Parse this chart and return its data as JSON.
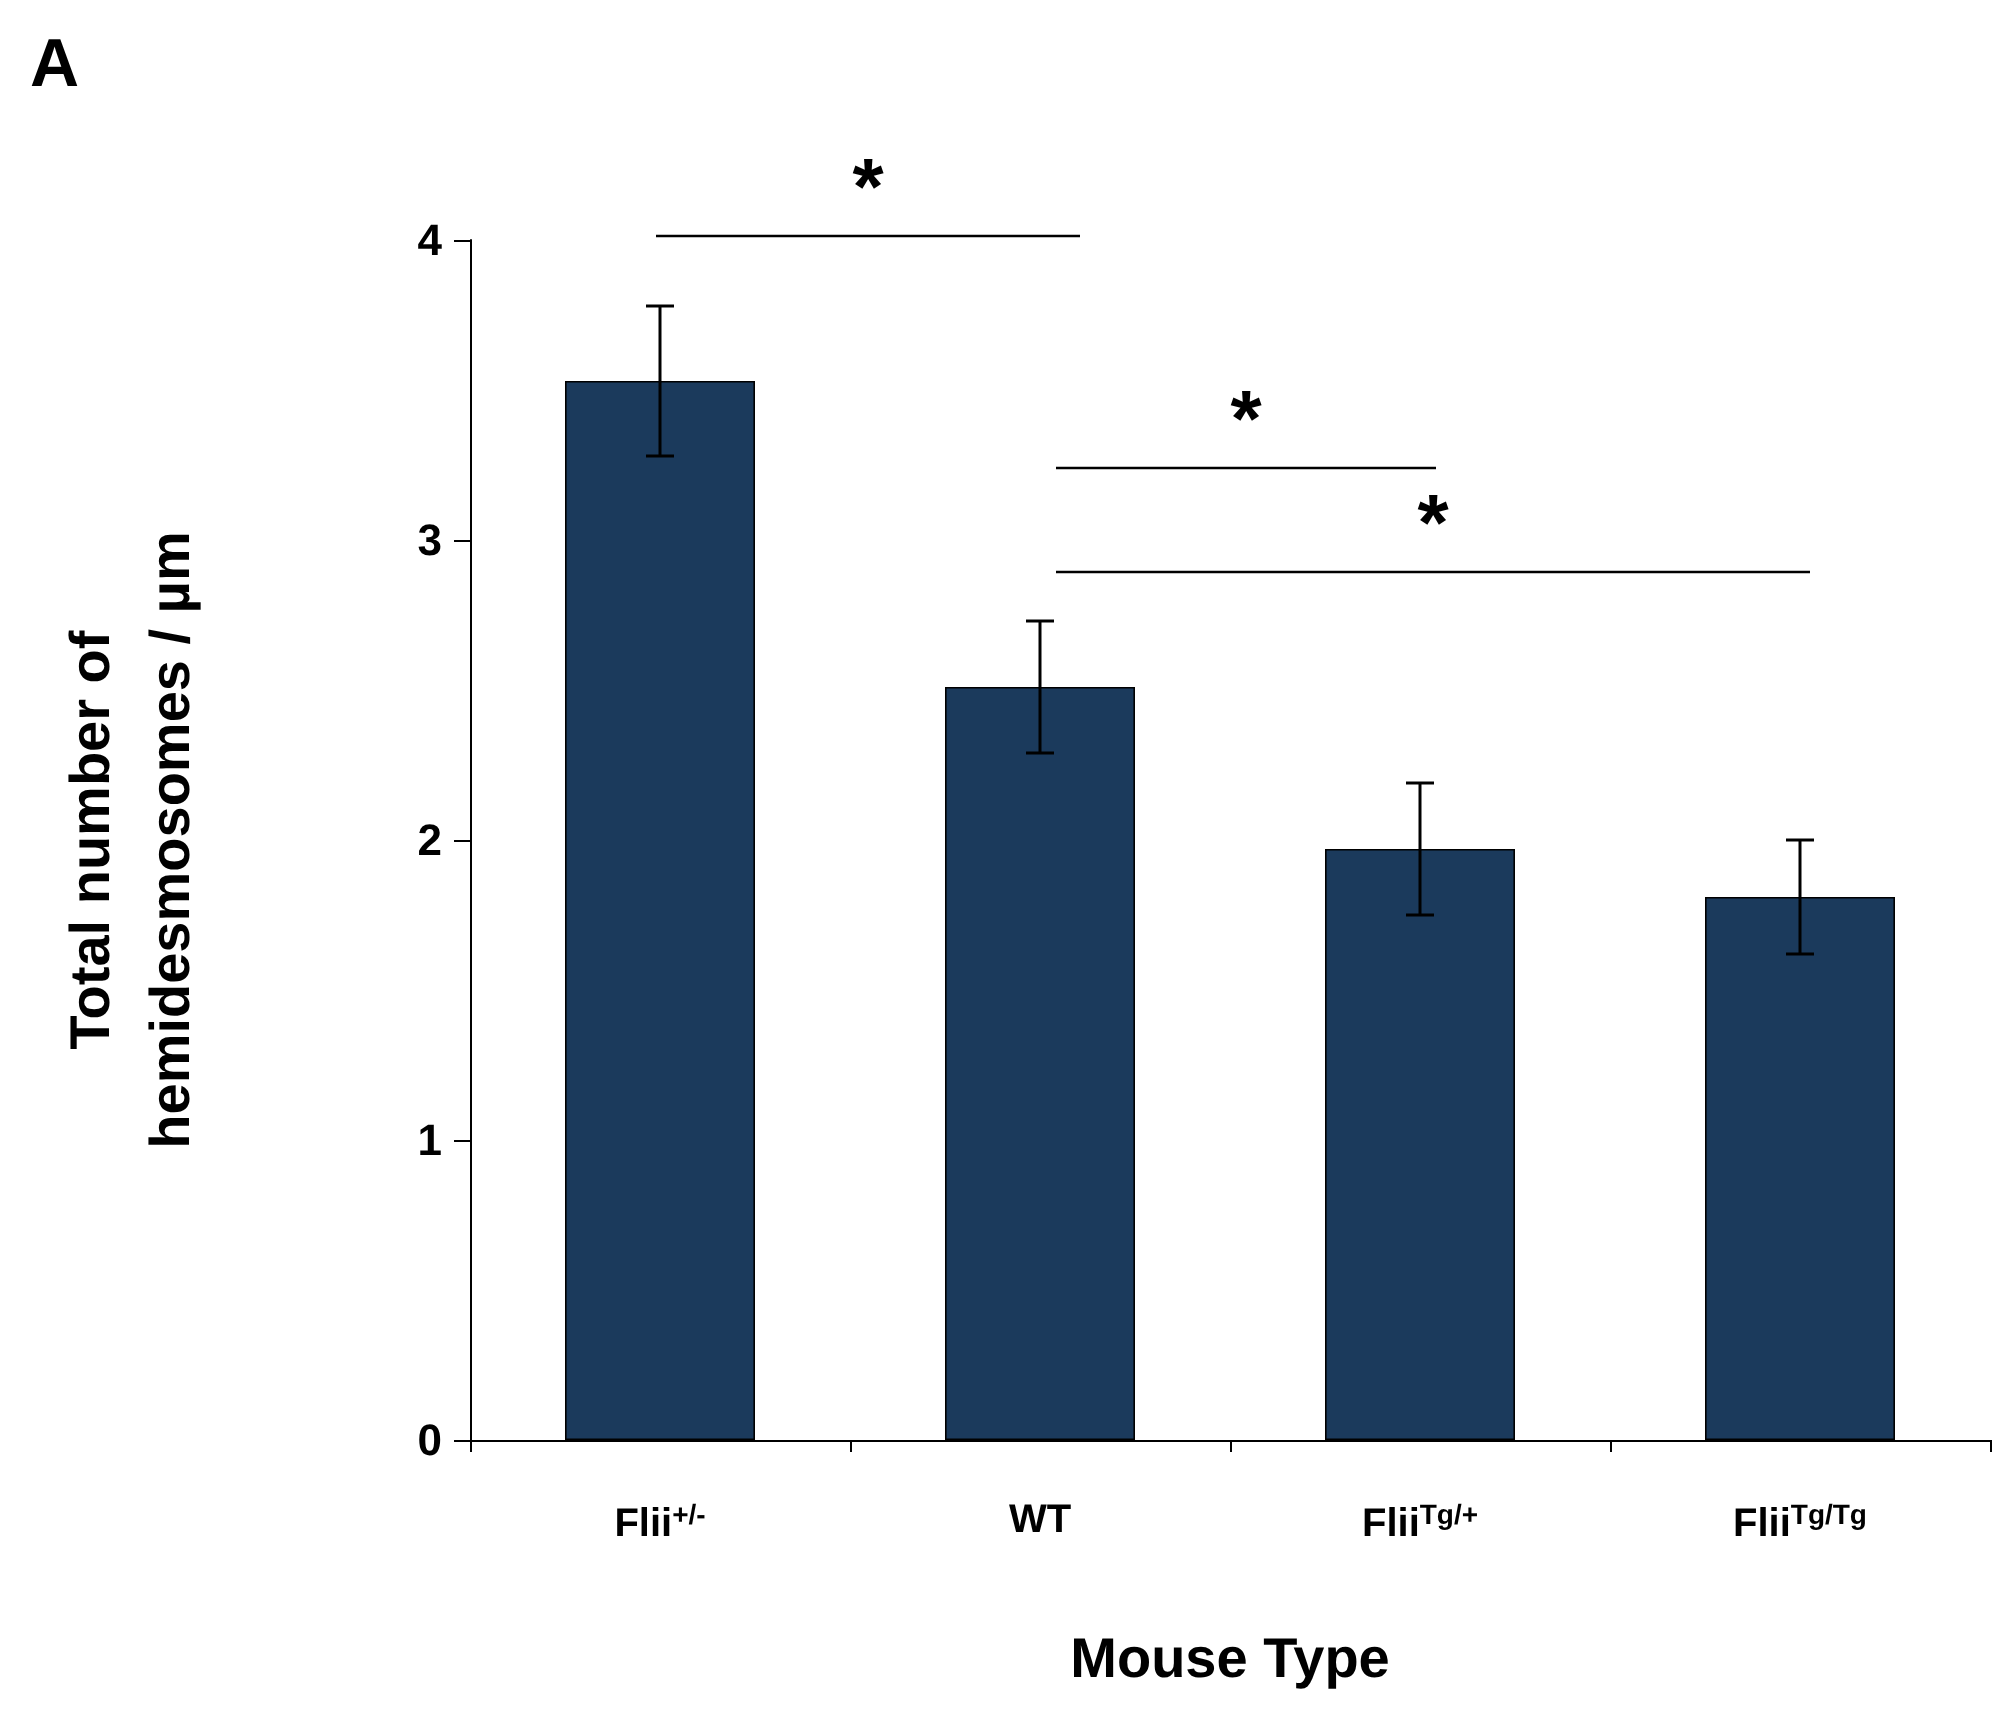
{
  "chart_data": {
    "type": "bar",
    "title": "A",
    "xlabel": "Mouse Type",
    "ylabel": "Total number of\nhemidesmosomes / µm",
    "categories": [
      "Flii$^{+/-}$",
      "WT",
      "Flii$^{Tg/+}$",
      "Flii$^{Tg/Tg}$"
    ],
    "values": [
      3.53,
      2.51,
      1.97,
      1.81
    ],
    "errors": [
      0.25,
      0.22,
      0.22,
      0.19
    ],
    "color": "#1b3a5c",
    "ylim": [
      0,
      4
    ],
    "yticks": [
      0,
      1,
      2,
      3,
      4
    ],
    "annotations": [
      "*",
      "*",
      "*"
    ]
  }
}
